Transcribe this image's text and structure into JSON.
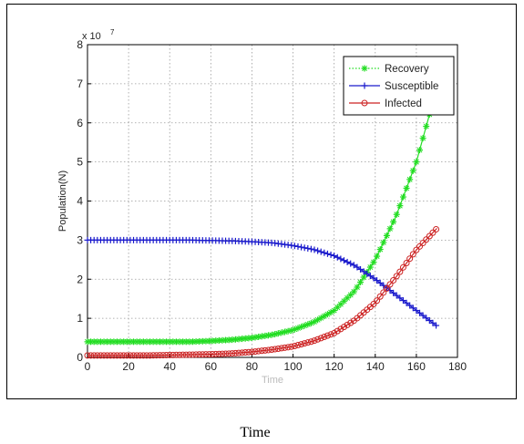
{
  "caption": "Time",
  "chart_data": {
    "type": "line",
    "xlabel": "Time",
    "ylabel": "Population(N)",
    "y_exponent_label": "x 10",
    "y_exponent_power": "7",
    "xlim": [
      0,
      180
    ],
    "ylim": [
      0,
      8
    ],
    "xticks": [
      "0",
      "20",
      "40",
      "60",
      "80",
      "100",
      "120",
      "140",
      "160",
      "180"
    ],
    "yticks": [
      "0",
      "1",
      "2",
      "3",
      "4",
      "5",
      "6",
      "7",
      "8"
    ],
    "grid": true,
    "legend_position": "top-right",
    "series": [
      {
        "name": "Recovery",
        "color": "#22dd22",
        "marker": "star",
        "x": [
          0,
          10,
          20,
          30,
          40,
          50,
          60,
          70,
          80,
          90,
          100,
          110,
          120,
          130,
          140,
          150,
          160,
          170
        ],
        "y": [
          0.4,
          0.4,
          0.4,
          0.4,
          0.4,
          0.4,
          0.42,
          0.45,
          0.5,
          0.58,
          0.7,
          0.9,
          1.2,
          1.7,
          2.5,
          3.6,
          5.0,
          6.9
        ]
      },
      {
        "name": "Susceptible",
        "color": "#1a1acc",
        "marker": "plus",
        "x": [
          0,
          10,
          20,
          30,
          40,
          50,
          60,
          70,
          80,
          90,
          100,
          110,
          120,
          130,
          140,
          150,
          160,
          170
        ],
        "y": [
          3.0,
          3.0,
          3.0,
          3.0,
          3.0,
          3.0,
          2.99,
          2.98,
          2.96,
          2.93,
          2.86,
          2.76,
          2.6,
          2.35,
          2.0,
          1.6,
          1.2,
          0.8
        ]
      },
      {
        "name": "Infected",
        "color": "#cc2222",
        "marker": "circle",
        "x": [
          0,
          10,
          20,
          30,
          40,
          50,
          60,
          70,
          80,
          90,
          100,
          110,
          120,
          130,
          140,
          150,
          160,
          170
        ],
        "y": [
          0.05,
          0.05,
          0.05,
          0.05,
          0.06,
          0.07,
          0.08,
          0.1,
          0.14,
          0.2,
          0.28,
          0.42,
          0.62,
          0.95,
          1.4,
          2.05,
          2.75,
          3.3
        ]
      }
    ]
  }
}
